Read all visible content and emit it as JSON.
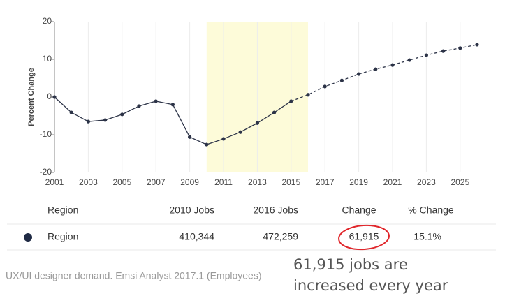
{
  "chart_data": {
    "type": "line",
    "ylabel": "Percent Change",
    "x": [
      2001,
      2002,
      2003,
      2004,
      2005,
      2006,
      2007,
      2008,
      2009,
      2010,
      2011,
      2012,
      2013,
      2014,
      2015,
      2016,
      2017,
      2018,
      2019,
      2020,
      2021,
      2022,
      2023,
      2024,
      2025,
      2026
    ],
    "series": [
      {
        "color": "#2c3347",
        "values": [
          0,
          -4.1,
          -6.5,
          -6.1,
          -4.6,
          -2.4,
          -1.1,
          -2.0,
          -10.6,
          -12.6,
          -11.1,
          -9.3,
          -6.9,
          -4.1,
          -1.1,
          0.6,
          2.8,
          4.4,
          6.1,
          7.4,
          8.5,
          9.8,
          11.1,
          12.2,
          13.0,
          13.9
        ]
      }
    ],
    "xlim": [
      2001,
      2026
    ],
    "xticks": [
      2001,
      2003,
      2005,
      2007,
      2009,
      2011,
      2013,
      2015,
      2017,
      2019,
      2021,
      2023,
      2025
    ],
    "ylim": [
      -20,
      20
    ],
    "yticks": [
      -20,
      -10,
      0,
      10,
      20
    ],
    "grid": true,
    "highlight": [
      2010,
      2016
    ],
    "highlight_color": "#fdfbd9",
    "dashed_from": 2015
  },
  "table": {
    "columns": [
      "Region",
      "2010 Jobs",
      "2016 Jobs",
      "Change",
      "% Change"
    ],
    "rows": [
      [
        "Region",
        "410,344",
        "472,259",
        "61,915",
        "15.1%"
      ]
    ]
  },
  "caption": "UX/UI designer demand. Emsi Analyst 2017.1 (Employees)",
  "annotation": [
    "61,915 jobs are",
    "increased every year"
  ]
}
